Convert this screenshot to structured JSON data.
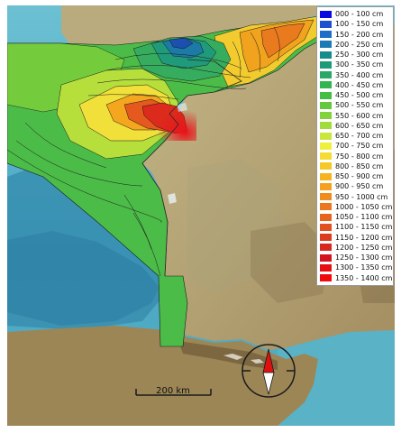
{
  "legend": {
    "items": [
      {
        "label": "000 - 100 cm",
        "color": "#0a0ae0"
      },
      {
        "label": "100 - 150 cm",
        "color": "#1e50d0"
      },
      {
        "label": "150 - 200 cm",
        "color": "#1e6ec8"
      },
      {
        "label": "200 - 250 cm",
        "color": "#1e7ab4"
      },
      {
        "label": "250 - 300 cm",
        "color": "#148c8c"
      },
      {
        "label": "300 - 350 cm",
        "color": "#1e9a78"
      },
      {
        "label": "350 - 400 cm",
        "color": "#28a864"
      },
      {
        "label": "400 - 450 cm",
        "color": "#32b450"
      },
      {
        "label": "450 - 500 cm",
        "color": "#46be46"
      },
      {
        "label": "500 - 550 cm",
        "color": "#64c83c"
      },
      {
        "label": "550 - 600 cm",
        "color": "#82d23c"
      },
      {
        "label": "600 - 650 cm",
        "color": "#a0dc3c"
      },
      {
        "label": "650 - 700 cm",
        "color": "#c8e63c"
      },
      {
        "label": "700 - 750 cm",
        "color": "#f0f03c"
      },
      {
        "label": "750 - 800 cm",
        "color": "#f5dc32"
      },
      {
        "label": "800 - 850 cm",
        "color": "#f5c828"
      },
      {
        "label": "850 - 900 cm",
        "color": "#f5b41e"
      },
      {
        "label": "900 - 950 cm",
        "color": "#f5a01e"
      },
      {
        "label": "950 - 1000 cm",
        "color": "#f08c1e"
      },
      {
        "label": "1000 - 1050 cm",
        "color": "#eb781e"
      },
      {
        "label": "1050 - 1100 cm",
        "color": "#e6641e"
      },
      {
        "label": "1100 - 1150 cm",
        "color": "#e1501e"
      },
      {
        "label": "1150 - 1200 cm",
        "color": "#dc3c1e"
      },
      {
        "label": "1200 - 1250 cm",
        "color": "#d7281e"
      },
      {
        "label": "1250 - 1300 cm",
        "color": "#d2141e"
      },
      {
        "label": "1300 - 1350 cm",
        "color": "#e60f14"
      },
      {
        "label": "1350 - 1400 cm",
        "color": "#f00a0a"
      }
    ]
  },
  "scale_bar": {
    "label": "200 km"
  },
  "colors": {
    "sea": "#5fb4c8",
    "deep_sea": "#3a8fb0",
    "land_low": "#b6a77a",
    "land_mid": "#a89466",
    "mountain": "#8a7650",
    "compass_north": "#e01010",
    "compass_south": "#ffffff"
  },
  "icons": {
    "compass": "compass-rose-icon"
  }
}
